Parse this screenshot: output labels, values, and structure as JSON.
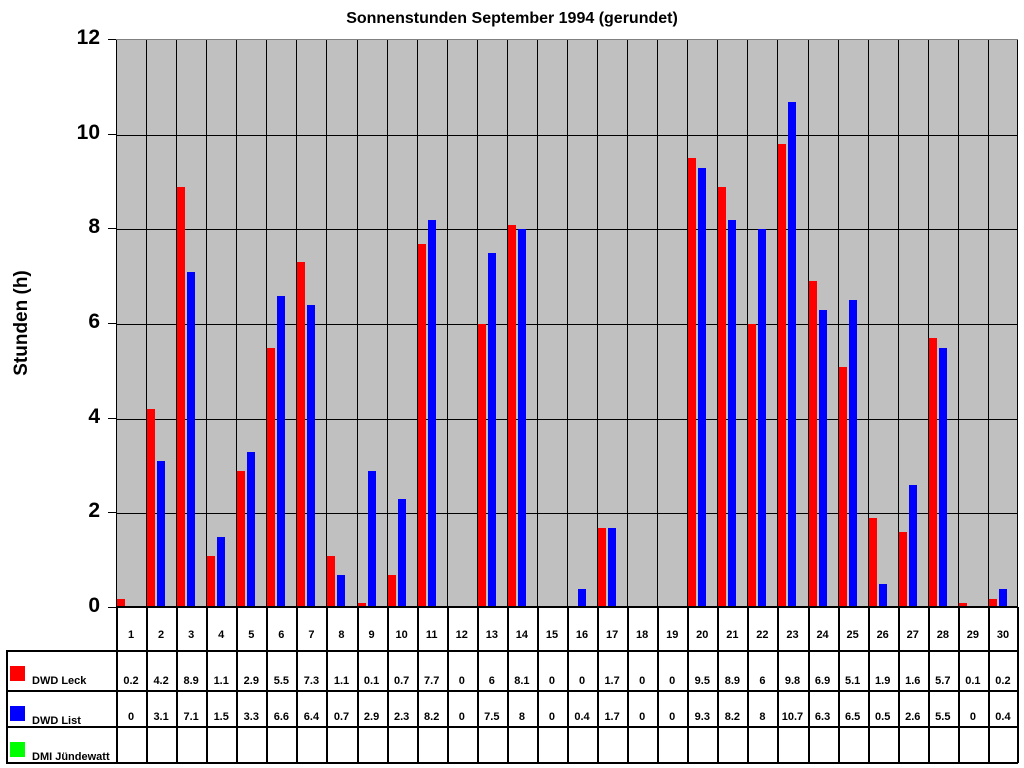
{
  "chart_data": {
    "type": "bar",
    "title": "Sonnenstunden September 1994 (gerundet)",
    "xlabel": "",
    "ylabel": "Stunden (h)",
    "ylim": [
      0,
      12
    ],
    "yticks": [
      0,
      2,
      4,
      6,
      8,
      10,
      12
    ],
    "grid": true,
    "legend_position": "table-below",
    "categories": [
      "1",
      "2",
      "3",
      "4",
      "5",
      "6",
      "7",
      "8",
      "9",
      "10",
      "11",
      "12",
      "13",
      "14",
      "15",
      "16",
      "17",
      "18",
      "19",
      "20",
      "21",
      "22",
      "23",
      "24",
      "25",
      "26",
      "27",
      "28",
      "29",
      "30"
    ],
    "series": [
      {
        "name": "DWD Leck",
        "color": "#ff0000",
        "values": [
          0.2,
          4.2,
          8.9,
          1.1,
          2.9,
          5.5,
          7.3,
          1.1,
          0.1,
          0.7,
          7.7,
          0,
          6,
          8.1,
          0,
          0,
          1.7,
          0,
          0,
          9.5,
          8.9,
          6,
          9.8,
          6.9,
          5.1,
          1.9,
          1.6,
          5.7,
          0.1,
          0.2
        ]
      },
      {
        "name": "DWD List",
        "color": "#0000ff",
        "values": [
          0,
          3.1,
          7.1,
          1.5,
          3.3,
          6.6,
          6.4,
          0.7,
          2.9,
          2.3,
          8.2,
          0,
          7.5,
          8,
          0,
          0.4,
          1.7,
          0,
          0,
          9.3,
          8.2,
          8,
          10.7,
          6.3,
          6.5,
          0.5,
          2.6,
          5.5,
          0,
          0.4
        ]
      },
      {
        "name": "DMI Jündewatt",
        "color": "#00ff00",
        "values": [
          null,
          null,
          null,
          null,
          null,
          null,
          null,
          null,
          null,
          null,
          null,
          null,
          null,
          null,
          null,
          null,
          null,
          null,
          null,
          null,
          null,
          null,
          null,
          null,
          null,
          null,
          null,
          null,
          null,
          null
        ]
      }
    ]
  }
}
